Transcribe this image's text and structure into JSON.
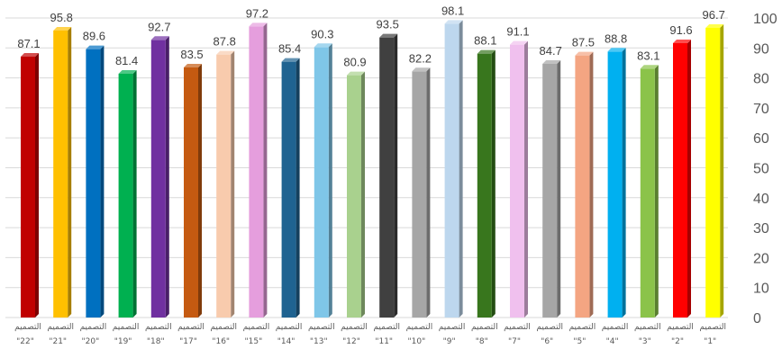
{
  "chart_data": {
    "type": "bar",
    "title": "",
    "xlabel": "",
    "ylabel": "",
    "ylim": [
      0,
      100
    ],
    "yticks": [
      0,
      10,
      20,
      30,
      40,
      50,
      60,
      70,
      80,
      90,
      100
    ],
    "grid": true,
    "y_axis_side": "right",
    "categories": [
      {
        "word": "التصميم",
        "num": "\"22\""
      },
      {
        "word": "التصميم",
        "num": "\"21\""
      },
      {
        "word": "التصميم",
        "num": "\"20\""
      },
      {
        "word": "التصميم",
        "num": "\"19\""
      },
      {
        "word": "التصميم",
        "num": "\"18\""
      },
      {
        "word": "التصميم",
        "num": "\"17\""
      },
      {
        "word": "التصميم",
        "num": "\"16\""
      },
      {
        "word": "التصميم",
        "num": "\"15\""
      },
      {
        "word": "التصميم",
        "num": "\"14\""
      },
      {
        "word": "التصميم",
        "num": "\"13\""
      },
      {
        "word": "التصميم",
        "num": "\"12\""
      },
      {
        "word": "التصميم",
        "num": "\"11\""
      },
      {
        "word": "التصميم",
        "num": "\"10\""
      },
      {
        "word": "التصميم",
        "num": "\"9\""
      },
      {
        "word": "التصميم",
        "num": "\"8\""
      },
      {
        "word": "التصميم",
        "num": "\"7\""
      },
      {
        "word": "التصميم",
        "num": "\"6\""
      },
      {
        "word": "التصميم",
        "num": "\"5\""
      },
      {
        "word": "التصميم",
        "num": "\"4\""
      },
      {
        "word": "التصميم",
        "num": "\"3\""
      },
      {
        "word": "التصميم",
        "num": "\"2\""
      },
      {
        "word": "التصميم",
        "num": "\"1\""
      }
    ],
    "values": [
      87.1,
      95.8,
      89.6,
      81.4,
      92.7,
      83.5,
      87.8,
      97.2,
      85.4,
      90.3,
      80.9,
      93.5,
      82.2,
      98.1,
      88.1,
      91.1,
      84.7,
      87.5,
      88.8,
      83.1,
      91.6,
      96.7
    ],
    "colors": [
      "#c00000",
      "#ffc000",
      "#0070c0",
      "#00b050",
      "#7030a0",
      "#c55a11",
      "#f8cbad",
      "#e59edd",
      "#1f6391",
      "#7fc6e8",
      "#a9d18e",
      "#404040",
      "#a6a6a6",
      "#bdd7ee",
      "#38761d",
      "#f0c0ee",
      "#a6a6a6",
      "#f4a582",
      "#00b0f0",
      "#8bc34a",
      "#ff0000",
      "#ffff00"
    ]
  }
}
